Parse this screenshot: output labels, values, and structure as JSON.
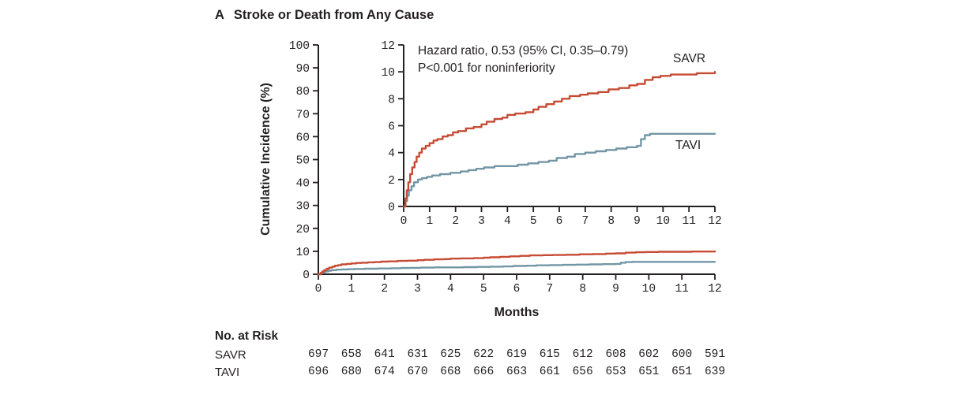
{
  "panel": {
    "label": "A",
    "title": "Stroke or Death from Any Cause"
  },
  "annotation": {
    "line1": "Hazard ratio, 0.53 (95% CI, 0.35–0.79)",
    "line2": "P<0.001 for noninferiority"
  },
  "colors": {
    "savr": "#c64b34",
    "tavi": "#7296a5",
    "axis": "#231f20",
    "text": "#231f20"
  },
  "chart_data": {
    "type": "line",
    "style": "step-cumulative-incidence",
    "title": "Stroke or Death from Any Cause",
    "xlabel": "Months",
    "ylabel": "Cumulative Incidence (%)",
    "main_axis": {
      "xlim": [
        0,
        12
      ],
      "ylim": [
        0,
        100
      ],
      "xticks": [
        0,
        1,
        2,
        3,
        4,
        5,
        6,
        7,
        8,
        9,
        10,
        11,
        12
      ],
      "yticks": [
        0,
        10,
        20,
        30,
        40,
        50,
        60,
        70,
        80,
        90,
        100
      ]
    },
    "inset_axis": {
      "xlim": [
        0,
        12
      ],
      "ylim": [
        0,
        12
      ],
      "xticks": [
        0,
        1,
        2,
        3,
        4,
        5,
        6,
        7,
        8,
        9,
        10,
        11,
        12
      ],
      "yticks": [
        0,
        2,
        4,
        6,
        8,
        10,
        12
      ]
    },
    "series": [
      {
        "name": "SAVR",
        "color": "#c64b34",
        "points": [
          [
            0,
            0
          ],
          [
            0.07,
            0.6
          ],
          [
            0.12,
            1.2
          ],
          [
            0.18,
            1.8
          ],
          [
            0.25,
            2.4
          ],
          [
            0.33,
            2.9
          ],
          [
            0.42,
            3.3
          ],
          [
            0.5,
            3.7
          ],
          [
            0.6,
            4.0
          ],
          [
            0.7,
            4.3
          ],
          [
            0.85,
            4.5
          ],
          [
            1.0,
            4.7
          ],
          [
            1.15,
            4.9
          ],
          [
            1.3,
            5.0
          ],
          [
            1.5,
            5.2
          ],
          [
            1.7,
            5.3
          ],
          [
            1.9,
            5.5
          ],
          [
            2.1,
            5.6
          ],
          [
            2.4,
            5.8
          ],
          [
            2.7,
            5.9
          ],
          [
            3.0,
            6.1
          ],
          [
            3.2,
            6.3
          ],
          [
            3.5,
            6.5
          ],
          [
            3.8,
            6.6
          ],
          [
            4.0,
            6.8
          ],
          [
            4.3,
            6.9
          ],
          [
            4.7,
            7.0
          ],
          [
            5.0,
            7.2
          ],
          [
            5.2,
            7.4
          ],
          [
            5.5,
            7.6
          ],
          [
            5.8,
            7.8
          ],
          [
            6.1,
            8.0
          ],
          [
            6.4,
            8.2
          ],
          [
            6.8,
            8.3
          ],
          [
            7.1,
            8.4
          ],
          [
            7.5,
            8.5
          ],
          [
            7.9,
            8.7
          ],
          [
            8.3,
            8.8
          ],
          [
            8.7,
            9.0
          ],
          [
            9.0,
            9.1
          ],
          [
            9.3,
            9.4
          ],
          [
            9.6,
            9.6
          ],
          [
            9.9,
            9.7
          ],
          [
            10.3,
            9.8
          ],
          [
            10.8,
            9.8
          ],
          [
            11.3,
            9.9
          ],
          [
            12,
            10.0
          ]
        ]
      },
      {
        "name": "TAVI",
        "color": "#7296a5",
        "points": [
          [
            0,
            0
          ],
          [
            0.07,
            0.4
          ],
          [
            0.13,
            0.8
          ],
          [
            0.2,
            1.2
          ],
          [
            0.3,
            1.5
          ],
          [
            0.4,
            1.8
          ],
          [
            0.55,
            2.0
          ],
          [
            0.7,
            2.1
          ],
          [
            0.9,
            2.2
          ],
          [
            1.1,
            2.3
          ],
          [
            1.4,
            2.4
          ],
          [
            1.8,
            2.5
          ],
          [
            2.2,
            2.6
          ],
          [
            2.5,
            2.7
          ],
          [
            2.8,
            2.8
          ],
          [
            3.1,
            2.9
          ],
          [
            3.5,
            3.0
          ],
          [
            4.0,
            3.0
          ],
          [
            4.4,
            3.1
          ],
          [
            4.8,
            3.2
          ],
          [
            5.2,
            3.3
          ],
          [
            5.6,
            3.4
          ],
          [
            5.9,
            3.6
          ],
          [
            6.3,
            3.7
          ],
          [
            6.6,
            3.9
          ],
          [
            7.0,
            4.0
          ],
          [
            7.4,
            4.1
          ],
          [
            7.8,
            4.2
          ],
          [
            8.2,
            4.3
          ],
          [
            8.6,
            4.4
          ],
          [
            9.0,
            4.5
          ],
          [
            9.15,
            5.0
          ],
          [
            9.3,
            5.3
          ],
          [
            9.5,
            5.4
          ],
          [
            10.2,
            5.4
          ],
          [
            11.0,
            5.4
          ],
          [
            12,
            5.4
          ]
        ]
      }
    ]
  },
  "risk_table": {
    "header": "No. at Risk",
    "months": [
      0,
      1,
      2,
      3,
      4,
      5,
      6,
      7,
      8,
      9,
      10,
      11,
      12
    ],
    "rows": [
      {
        "label": "SAVR",
        "values": [
          697,
          658,
          641,
          631,
          625,
          622,
          619,
          615,
          612,
          608,
          602,
          600,
          591
        ]
      },
      {
        "label": "TAVI",
        "values": [
          696,
          680,
          674,
          670,
          668,
          666,
          663,
          661,
          656,
          653,
          651,
          651,
          639
        ]
      }
    ]
  }
}
